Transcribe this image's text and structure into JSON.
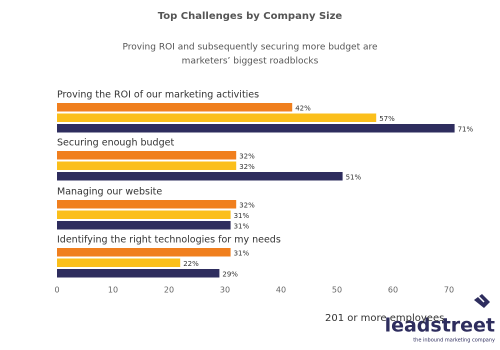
{
  "chart_data": {
    "type": "hbar",
    "title": "Top Challenges by Company Size",
    "subtitle": [
      "Proving ROI and subsequently securing more budget are",
      "marketers’ biggest roadblocks"
    ],
    "categories": [
      "Proving the ROI of our marketing activities",
      "Securing enough budget",
      "Managing our website",
      "Identifying the right technologies for my needs"
    ],
    "series": [
      {
        "color": "#f07f1e",
        "values": [
          42,
          32,
          32,
          31
        ],
        "value_labels": [
          "42%",
          "32%",
          "32%",
          "31%"
        ]
      },
      {
        "color": "#fbbf1b",
        "values": [
          57,
          32,
          31,
          22
        ],
        "value_labels": [
          "57%",
          "32%",
          "31%",
          "22%"
        ]
      },
      {
        "name": "201 or more employees",
        "color": "#2e2d5e",
        "values": [
          71,
          51,
          31,
          29
        ],
        "value_labels": [
          "71%",
          "51%",
          "31%",
          "29%"
        ]
      }
    ],
    "xlim": [
      0,
      75
    ],
    "xticks": [
      0,
      10,
      20,
      30,
      40,
      50,
      60,
      70
    ],
    "grid": false
  },
  "logo": {
    "name": "leadstreet",
    "tagline": "the inbound marketing company"
  }
}
